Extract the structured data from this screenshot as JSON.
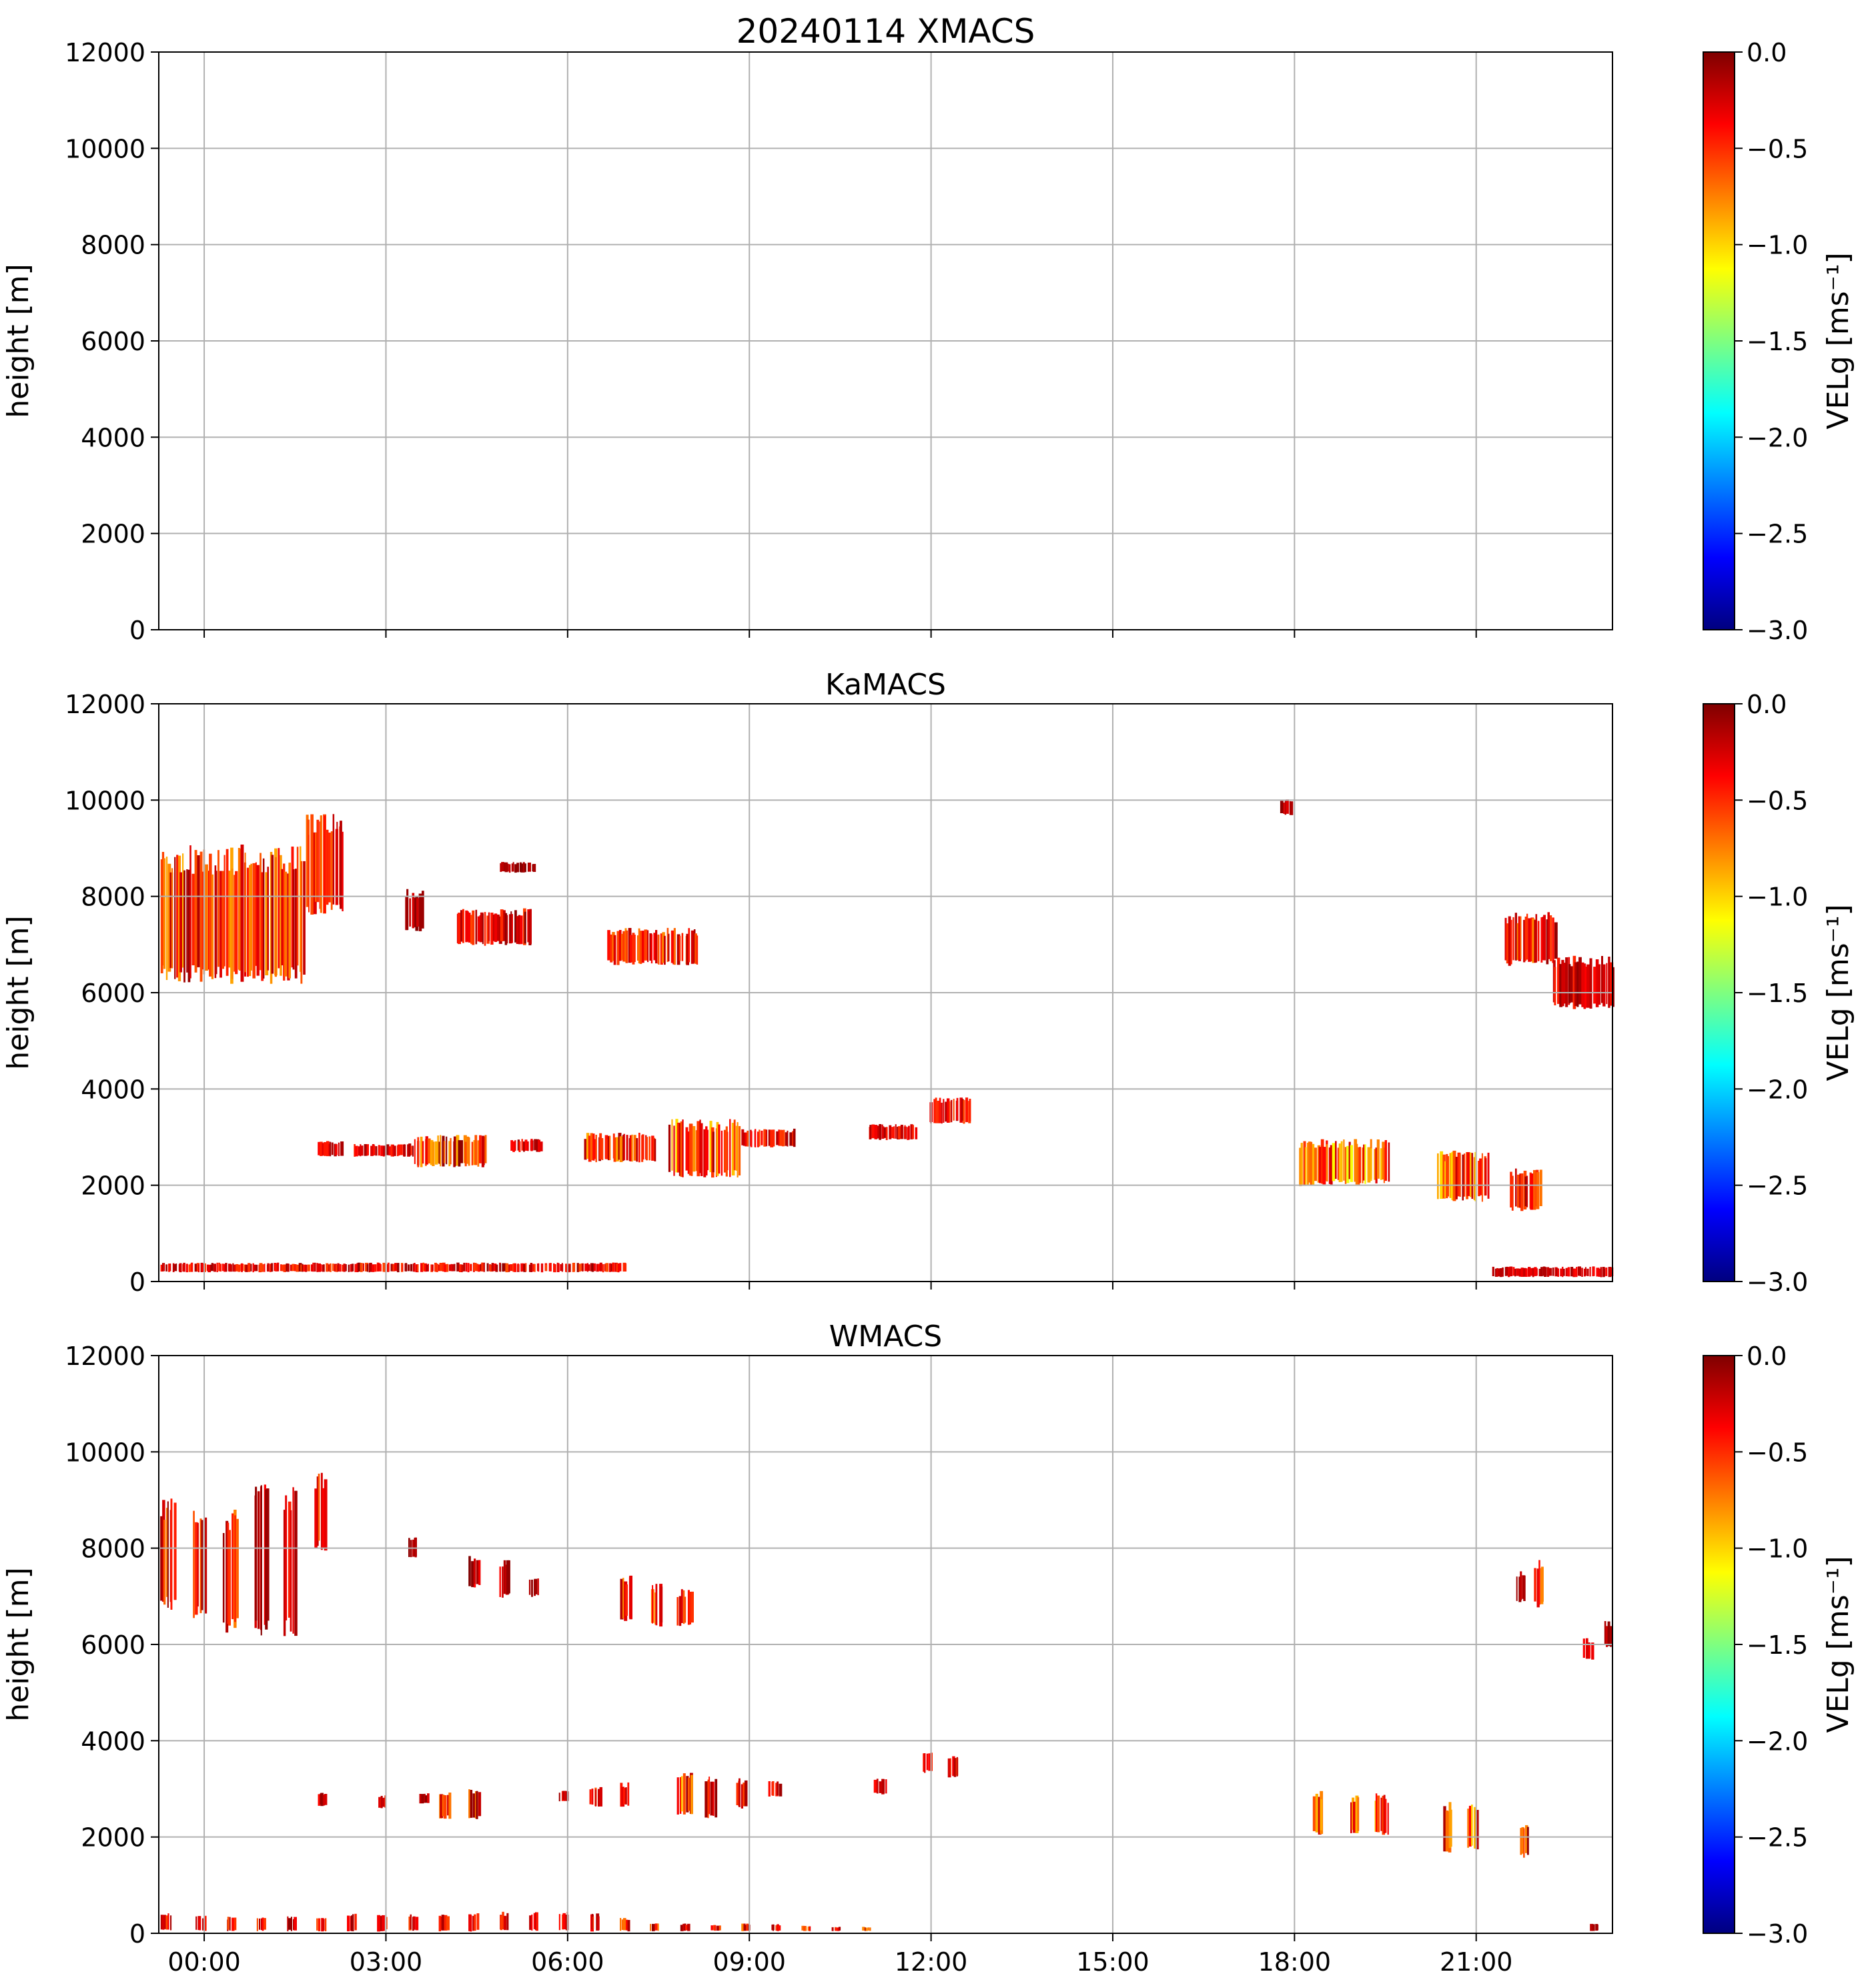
{
  "chart_data": [
    {
      "type": "heatmap",
      "title": "20240114 XMACS",
      "ylabel": "height [m]",
      "xlabel": "",
      "x_ticks": [
        "00:00",
        "03:00",
        "06:00",
        "09:00",
        "12:00",
        "15:00",
        "18:00",
        "21:00"
      ],
      "x_tick_hours": [
        0.75,
        3.75,
        6.75,
        9.75,
        12.75,
        15.75,
        18.75,
        21.75
      ],
      "x_tick_labels_visible": false,
      "xlim_hours": [
        0,
        24
      ],
      "ylim": [
        0,
        12000
      ],
      "y_ticks": [
        0,
        2000,
        4000,
        6000,
        8000,
        10000,
        12000
      ],
      "grid": true,
      "colorbar": {
        "label": "VELg [ms⁻¹]",
        "range": [
          -3.0,
          0.0
        ],
        "colormap": "jet",
        "ticks": [
          "0.0",
          "−0.5",
          "−1.0",
          "−1.5",
          "−2.0",
          "−2.5",
          "−3.0"
        ]
      },
      "echoes": []
    },
    {
      "type": "heatmap",
      "title": "KaMACS",
      "ylabel": "height [m]",
      "xlabel": "",
      "x_ticks": [
        "00:00",
        "03:00",
        "06:00",
        "09:00",
        "12:00",
        "15:00",
        "18:00",
        "21:00"
      ],
      "x_tick_hours": [
        0.75,
        3.75,
        6.75,
        9.75,
        12.75,
        15.75,
        18.75,
        21.75
      ],
      "x_tick_labels_visible": false,
      "xlim_hours": [
        0,
        24
      ],
      "ylim": [
        0,
        12000
      ],
      "y_ticks": [
        0,
        2000,
        4000,
        6000,
        8000,
        10000,
        12000
      ],
      "grid": true,
      "colorbar": {
        "label": "VELg [ms⁻¹]",
        "range": [
          -3.0,
          0.0
        ],
        "colormap": "jet",
        "ticks": [
          "0.0",
          "−0.5",
          "−1.0",
          "−1.5",
          "−2.0",
          "−2.5",
          "−3.0"
        ]
      },
      "echoes": [
        {
          "t0": 0.0,
          "t1": 2.4,
          "base": 6300,
          "top": 8900,
          "vmin": -0.9,
          "vmax": -0.05
        },
        {
          "t0": 2.4,
          "t1": 3.05,
          "base": 7700,
          "top": 9600,
          "vmin": -0.7,
          "vmax": -0.1
        },
        {
          "t0": 4.05,
          "t1": 4.35,
          "base": 7300,
          "top": 8100,
          "vmin": -0.3,
          "vmax": 0.0
        },
        {
          "t0": 4.9,
          "t1": 6.15,
          "base": 7000,
          "top": 7700,
          "vmin": -0.6,
          "vmax": 0.0
        },
        {
          "t0": 7.4,
          "t1": 8.9,
          "base": 6600,
          "top": 7300,
          "vmin": -0.8,
          "vmax": -0.1
        },
        {
          "t0": 5.6,
          "t1": 6.2,
          "base": 8500,
          "top": 8700,
          "vmin": -0.2,
          "vmax": 0.0
        },
        {
          "t0": 0.0,
          "t1": 7.7,
          "base": 200,
          "top": 380,
          "vmin": -0.6,
          "vmax": -0.05
        },
        {
          "t0": 2.6,
          "t1": 3.0,
          "base": 2600,
          "top": 2900,
          "vmin": -0.5,
          "vmax": -0.1
        },
        {
          "t0": 3.2,
          "t1": 4.2,
          "base": 2600,
          "top": 2850,
          "vmin": -0.5,
          "vmax": -0.1
        },
        {
          "t0": 4.2,
          "t1": 5.4,
          "base": 2400,
          "top": 3000,
          "vmin": -0.9,
          "vmax": 0.0
        },
        {
          "t0": 5.8,
          "t1": 6.3,
          "base": 2700,
          "top": 2950,
          "vmin": -0.5,
          "vmax": -0.05
        },
        {
          "t0": 7.0,
          "t1": 8.2,
          "base": 2500,
          "top": 3050,
          "vmin": -0.9,
          "vmax": -0.1
        },
        {
          "t0": 8.4,
          "t1": 9.6,
          "base": 2200,
          "top": 3300,
          "vmin": -1.1,
          "vmax": -0.1
        },
        {
          "t0": 9.6,
          "t1": 10.5,
          "base": 2800,
          "top": 3150,
          "vmin": -0.6,
          "vmax": -0.05
        },
        {
          "t0": 11.7,
          "t1": 12.5,
          "base": 2950,
          "top": 3250,
          "vmin": -0.5,
          "vmax": -0.1
        },
        {
          "t0": 12.7,
          "t1": 13.4,
          "base": 3300,
          "top": 3800,
          "vmin": -0.6,
          "vmax": -0.1
        },
        {
          "t0": 18.8,
          "t1": 19.2,
          "base": 2000,
          "top": 2900,
          "vmin": -1.0,
          "vmax": -0.2
        },
        {
          "t0": 19.2,
          "t1": 20.3,
          "base": 2050,
          "top": 2900,
          "vmin": -1.2,
          "vmax": -0.2
        },
        {
          "t0": 21.1,
          "t1": 21.95,
          "base": 1700,
          "top": 2650,
          "vmin": -1.1,
          "vmax": -0.1
        },
        {
          "t0": 22.3,
          "t1": 22.8,
          "base": 1500,
          "top": 2300,
          "vmin": -0.8,
          "vmax": -0.05
        },
        {
          "t0": 22.2,
          "t1": 23.05,
          "base": 6600,
          "top": 7600,
          "vmin": -0.8,
          "vmax": -0.05
        },
        {
          "t0": 23.0,
          "t1": 24.0,
          "base": 5700,
          "top": 6700,
          "vmin": -0.5,
          "vmax": -0.05
        },
        {
          "t0": 22.0,
          "t1": 24.0,
          "base": 100,
          "top": 300,
          "vmin": -0.4,
          "vmax": -0.1
        },
        {
          "t0": 18.5,
          "t1": 18.7,
          "base": 9700,
          "top": 10000,
          "vmin": -0.3,
          "vmax": 0.0
        }
      ]
    },
    {
      "type": "heatmap",
      "title": "WMACS",
      "ylabel": "height [m]",
      "xlabel": "",
      "x_ticks": [
        "00:00",
        "03:00",
        "06:00",
        "09:00",
        "12:00",
        "15:00",
        "18:00",
        "21:00"
      ],
      "x_tick_hours": [
        0.75,
        3.75,
        6.75,
        9.75,
        12.75,
        15.75,
        18.75,
        21.75
      ],
      "x_tick_labels_visible": true,
      "xlim_hours": [
        0,
        24
      ],
      "ylim": [
        0,
        12000
      ],
      "y_ticks": [
        0,
        2000,
        4000,
        6000,
        8000,
        10000,
        12000
      ],
      "grid": true,
      "colorbar": {
        "label": "VELg [ms⁻¹]",
        "range": [
          -3.0,
          0.0
        ],
        "colormap": "jet",
        "ticks": [
          "0.0",
          "−0.5",
          "−1.0",
          "−1.5",
          "−2.0",
          "−2.5",
          "−3.0"
        ]
      },
      "echoes": [
        {
          "t0": 0.0,
          "t1": 0.25,
          "base": 6800,
          "top": 8900,
          "vmin": -0.8,
          "vmax": -0.05
        },
        {
          "t0": 0.55,
          "t1": 0.75,
          "base": 6600,
          "top": 8800,
          "vmin": -0.7,
          "vmax": -0.05
        },
        {
          "t0": 1.05,
          "t1": 1.3,
          "base": 6300,
          "top": 8700,
          "vmin": -0.8,
          "vmax": -0.05
        },
        {
          "t0": 1.55,
          "t1": 1.8,
          "base": 6200,
          "top": 9300,
          "vmin": -0.7,
          "vmax": 0.0
        },
        {
          "t0": 2.05,
          "t1": 2.25,
          "base": 6300,
          "top": 9100,
          "vmin": -0.6,
          "vmax": -0.05
        },
        {
          "t0": 2.55,
          "t1": 2.75,
          "base": 8000,
          "top": 9500,
          "vmin": -0.7,
          "vmax": -0.1
        },
        {
          "t0": 4.1,
          "t1": 4.25,
          "base": 7800,
          "top": 8200,
          "vmin": -0.3,
          "vmax": 0.0
        },
        {
          "t0": 5.1,
          "t1": 5.3,
          "base": 7200,
          "top": 7800,
          "vmin": -0.4,
          "vmax": 0.0
        },
        {
          "t0": 5.6,
          "t1": 5.8,
          "base": 7000,
          "top": 7700,
          "vmin": -0.4,
          "vmax": 0.0
        },
        {
          "t0": 6.1,
          "t1": 6.25,
          "base": 7000,
          "top": 7400,
          "vmin": -0.3,
          "vmax": 0.0
        },
        {
          "t0": 7.6,
          "t1": 7.8,
          "base": 6500,
          "top": 7400,
          "vmin": -0.8,
          "vmax": -0.1
        },
        {
          "t0": 8.1,
          "t1": 8.3,
          "base": 6400,
          "top": 7200,
          "vmin": -0.8,
          "vmax": -0.1
        },
        {
          "t0": 8.55,
          "t1": 8.8,
          "base": 6400,
          "top": 7100,
          "vmin": -0.7,
          "vmax": -0.1
        },
        {
          "t0": 2.6,
          "t1": 2.75,
          "base": 2650,
          "top": 2900,
          "vmin": -0.4,
          "vmax": -0.05
        },
        {
          "t0": 3.6,
          "t1": 3.75,
          "base": 2600,
          "top": 2850,
          "vmin": -0.5,
          "vmax": -0.1
        },
        {
          "t0": 4.6,
          "t1": 4.8,
          "base": 2400,
          "top": 2900,
          "vmin": -0.8,
          "vmax": -0.1
        },
        {
          "t0": 5.1,
          "t1": 5.3,
          "base": 2400,
          "top": 3000,
          "vmin": -0.8,
          "vmax": -0.05
        },
        {
          "t0": 6.6,
          "t1": 6.75,
          "base": 2750,
          "top": 2950,
          "vmin": -0.5,
          "vmax": -0.05
        },
        {
          "t0": 7.1,
          "t1": 7.3,
          "base": 2650,
          "top": 3050,
          "vmin": -0.7,
          "vmax": -0.1
        },
        {
          "t0": 7.6,
          "t1": 7.75,
          "base": 2650,
          "top": 3100,
          "vmin": -0.7,
          "vmax": -0.05
        },
        {
          "t0": 8.55,
          "t1": 8.8,
          "base": 2500,
          "top": 3300,
          "vmin": -1.0,
          "vmax": -0.1
        },
        {
          "t0": 9.0,
          "t1": 9.2,
          "base": 2400,
          "top": 3200,
          "vmin": -1.0,
          "vmax": -0.05
        },
        {
          "t0": 9.5,
          "t1": 9.7,
          "base": 2600,
          "top": 3200,
          "vmin": -0.7,
          "vmax": -0.05
        },
        {
          "t0": 10.05,
          "t1": 10.25,
          "base": 2850,
          "top": 3150,
          "vmin": -0.6,
          "vmax": -0.05
        },
        {
          "t0": 11.8,
          "t1": 12.0,
          "base": 2900,
          "top": 3200,
          "vmin": -0.5,
          "vmax": -0.05
        },
        {
          "t0": 12.6,
          "t1": 12.75,
          "base": 3350,
          "top": 3750,
          "vmin": -0.6,
          "vmax": -0.1
        },
        {
          "t0": 13.0,
          "t1": 13.2,
          "base": 3250,
          "top": 3650,
          "vmin": -0.6,
          "vmax": -0.1
        },
        {
          "t0": 19.05,
          "t1": 19.2,
          "base": 2050,
          "top": 2900,
          "vmin": -0.9,
          "vmax": -0.2
        },
        {
          "t0": 19.65,
          "t1": 19.8,
          "base": 2100,
          "top": 2850,
          "vmin": -0.9,
          "vmax": -0.2
        },
        {
          "t0": 20.05,
          "t1": 20.3,
          "base": 2050,
          "top": 2850,
          "vmin": -1.0,
          "vmax": -0.2
        },
        {
          "t0": 21.2,
          "t1": 21.35,
          "base": 1700,
          "top": 2700,
          "vmin": -1.0,
          "vmax": -0.1
        },
        {
          "t0": 21.6,
          "t1": 21.75,
          "base": 1750,
          "top": 2650,
          "vmin": -1.1,
          "vmax": -0.1
        },
        {
          "t0": 22.45,
          "t1": 22.6,
          "base": 1600,
          "top": 2300,
          "vmin": -0.8,
          "vmax": -0.05
        },
        {
          "t0": 22.4,
          "t1": 22.55,
          "base": 6900,
          "top": 7500,
          "vmin": -0.4,
          "vmax": 0.0
        },
        {
          "t0": 22.7,
          "t1": 22.85,
          "base": 6800,
          "top": 7700,
          "vmin": -0.8,
          "vmax": -0.1
        },
        {
          "t0": 23.5,
          "t1": 23.65,
          "base": 5700,
          "top": 6100,
          "vmin": -0.4,
          "vmax": 0.0
        },
        {
          "t0": 23.85,
          "t1": 24.0,
          "base": 5950,
          "top": 6450,
          "vmin": -0.3,
          "vmax": -0.05
        },
        {
          "t0": 4.3,
          "t1": 4.45,
          "base": 2700,
          "top": 2900,
          "vmin": -0.4,
          "vmax": 0.0
        },
        {
          "t0": 0.0,
          "t1": 0.2,
          "base": 50,
          "top": 400,
          "vmin": -0.6,
          "vmax": -0.05
        },
        {
          "t0": 0.6,
          "t1": 0.75,
          "base": 50,
          "top": 350,
          "vmin": -0.6,
          "vmax": -0.05
        },
        {
          "t0": 1.1,
          "t1": 1.25,
          "base": 50,
          "top": 330,
          "vmin": -0.6,
          "vmax": -0.05
        },
        {
          "t0": 1.6,
          "t1": 1.75,
          "base": 50,
          "top": 340,
          "vmin": -0.6,
          "vmax": -0.05
        },
        {
          "t0": 2.1,
          "t1": 2.25,
          "base": 50,
          "top": 330,
          "vmin": -0.6,
          "vmax": -0.05
        },
        {
          "t0": 2.6,
          "t1": 2.75,
          "base": 50,
          "top": 340,
          "vmin": -0.6,
          "vmax": -0.05
        },
        {
          "t0": 3.1,
          "t1": 3.25,
          "base": 50,
          "top": 380,
          "vmin": -0.6,
          "vmax": -0.05
        },
        {
          "t0": 3.6,
          "t1": 3.75,
          "base": 50,
          "top": 380,
          "vmin": -0.6,
          "vmax": -0.05
        },
        {
          "t0": 4.1,
          "t1": 4.25,
          "base": 50,
          "top": 380,
          "vmin": -0.6,
          "vmax": -0.05
        },
        {
          "t0": 4.6,
          "t1": 4.75,
          "base": 50,
          "top": 390,
          "vmin": -0.6,
          "vmax": -0.05
        },
        {
          "t0": 5.1,
          "t1": 5.25,
          "base": 50,
          "top": 400,
          "vmin": -0.6,
          "vmax": -0.05
        },
        {
          "t0": 5.6,
          "t1": 5.75,
          "base": 50,
          "top": 420,
          "vmin": -0.6,
          "vmax": -0.05
        },
        {
          "t0": 6.1,
          "t1": 6.25,
          "base": 50,
          "top": 430,
          "vmin": -0.6,
          "vmax": -0.05
        },
        {
          "t0": 6.6,
          "t1": 6.75,
          "base": 50,
          "top": 420,
          "vmin": -0.6,
          "vmax": -0.05
        },
        {
          "t0": 7.1,
          "t1": 7.25,
          "base": 50,
          "top": 400,
          "vmin": -0.6,
          "vmax": -0.05
        },
        {
          "t0": 7.6,
          "t1": 7.75,
          "base": 50,
          "top": 300,
          "vmin": -0.8,
          "vmax": -0.05
        },
        {
          "t0": 8.1,
          "t1": 8.25,
          "base": 50,
          "top": 200,
          "vmin": -0.8,
          "vmax": -0.05
        },
        {
          "t0": 8.6,
          "t1": 8.75,
          "base": 50,
          "top": 200,
          "vmin": -0.8,
          "vmax": -0.05
        },
        {
          "t0": 9.1,
          "t1": 9.25,
          "base": 50,
          "top": 180,
          "vmin": -0.8,
          "vmax": -0.05
        },
        {
          "t0": 9.6,
          "t1": 9.75,
          "base": 50,
          "top": 200,
          "vmin": -0.9,
          "vmax": -0.05
        },
        {
          "t0": 10.1,
          "t1": 10.25,
          "base": 50,
          "top": 180,
          "vmin": -0.8,
          "vmax": -0.05
        },
        {
          "t0": 10.6,
          "t1": 10.75,
          "base": 50,
          "top": 150,
          "vmin": -0.8,
          "vmax": -0.05
        },
        {
          "t0": 11.1,
          "t1": 11.25,
          "base": 50,
          "top": 130,
          "vmin": -0.8,
          "vmax": -0.05
        },
        {
          "t0": 11.6,
          "t1": 11.75,
          "base": 50,
          "top": 130,
          "vmin": -0.8,
          "vmax": -0.05
        },
        {
          "t0": 23.6,
          "t1": 23.75,
          "base": 50,
          "top": 200,
          "vmin": -0.4,
          "vmax": -0.05
        }
      ]
    }
  ]
}
